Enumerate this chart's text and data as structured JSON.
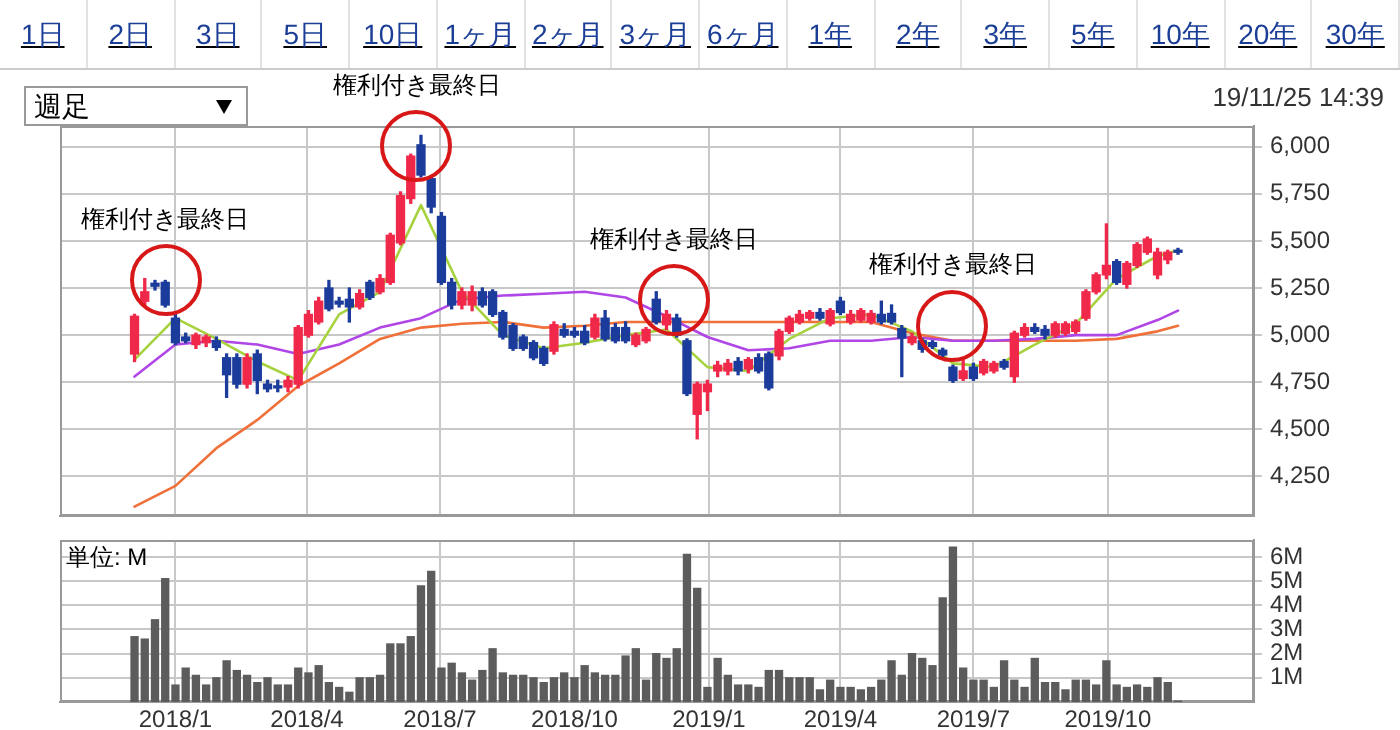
{
  "chart_data": [
    {
      "type": "other",
      "categories": [
        "1日",
        "2日",
        "3日",
        "5日",
        "10日",
        "1ヶ月",
        "2ヶ月",
        "3ヶ月",
        "6ヶ月",
        "1年",
        "2年",
        "3年",
        "5年",
        "10年",
        "20年",
        "30年"
      ],
      "annotations": [
        "週足",
        "19/11/25 14:39"
      ]
    },
    {
      "type": "candlestick",
      "x": [
        "2017-12-04",
        "2017-12-11",
        "2017-12-18",
        "2017-12-25",
        "2018-01-01",
        "2018-01-08",
        "2018-01-15",
        "2018-01-22",
        "2018-01-29",
        "2018-02-05",
        "2018-02-12",
        "2018-02-19",
        "2018-02-26",
        "2018-03-05",
        "2018-03-12",
        "2018-03-19",
        "2018-03-26",
        "2018-04-02",
        "2018-04-09",
        "2018-04-16",
        "2018-04-23",
        "2018-04-30",
        "2018-05-07",
        "2018-05-14",
        "2018-05-21",
        "2018-05-28",
        "2018-06-04",
        "2018-06-11",
        "2018-06-18",
        "2018-06-25",
        "2018-07-02",
        "2018-07-09",
        "2018-07-16",
        "2018-07-23",
        "2018-07-30",
        "2018-08-06",
        "2018-08-13",
        "2018-08-20",
        "2018-08-27",
        "2018-09-03",
        "2018-09-10",
        "2018-09-17",
        "2018-09-24",
        "2018-10-01",
        "2018-10-08",
        "2018-10-15",
        "2018-10-22",
        "2018-10-29",
        "2018-11-05",
        "2018-11-12",
        "2018-11-19",
        "2018-11-26",
        "2018-12-03",
        "2018-12-10",
        "2018-12-17",
        "2018-12-24",
        "2018-12-31",
        "2019-01-07",
        "2019-01-14",
        "2019-01-21",
        "2019-01-28",
        "2019-02-04",
        "2019-02-11",
        "2019-02-18",
        "2019-02-25",
        "2019-03-04",
        "2019-03-11",
        "2019-03-18",
        "2019-03-25",
        "2019-04-01",
        "2019-04-08",
        "2019-04-15",
        "2019-04-22",
        "2019-04-29",
        "2019-05-06",
        "2019-05-13",
        "2019-05-20",
        "2019-05-27",
        "2019-06-03",
        "2019-06-10",
        "2019-06-17",
        "2019-06-24",
        "2019-07-01",
        "2019-07-08",
        "2019-07-15",
        "2019-07-22",
        "2019-07-29",
        "2019-08-05",
        "2019-08-12",
        "2019-08-19",
        "2019-08-26",
        "2019-09-02",
        "2019-09-09",
        "2019-09-16",
        "2019-09-23",
        "2019-09-30",
        "2019-10-07",
        "2019-10-14",
        "2019-10-21",
        "2019-10-28",
        "2019-11-04",
        "2019-11-11",
        "2019-11-18"
      ],
      "ohlc": [
        [
          4900,
          5110,
          4860,
          5100
        ],
        [
          5180,
          5300,
          5160,
          5230
        ],
        [
          5275,
          5290,
          5240,
          5260
        ],
        [
          5280,
          5290,
          5150,
          5160
        ],
        [
          5090,
          5110,
          4950,
          4960
        ],
        [
          4990,
          5010,
          4960,
          4970
        ],
        [
          4950,
          5010,
          4930,
          5000
        ],
        [
          4960,
          5000,
          4940,
          4990
        ],
        [
          4970,
          4990,
          4920,
          4935
        ],
        [
          4880,
          4900,
          4670,
          4790
        ],
        [
          4880,
          4900,
          4720,
          4740
        ],
        [
          4740,
          4900,
          4720,
          4880
        ],
        [
          4900,
          4920,
          4690,
          4760
        ],
        [
          4740,
          4760,
          4700,
          4715
        ],
        [
          4730,
          4760,
          4700,
          4720
        ],
        [
          4725,
          4780,
          4700,
          4760
        ],
        [
          4740,
          5050,
          4720,
          5040
        ],
        [
          5000,
          5130,
          4990,
          5110
        ],
        [
          5070,
          5200,
          5060,
          5180
        ],
        [
          5250,
          5290,
          5130,
          5140
        ],
        [
          5180,
          5200,
          5150,
          5165
        ],
        [
          5190,
          5250,
          5070,
          5150
        ],
        [
          5150,
          5240,
          5140,
          5220
        ],
        [
          5280,
          5290,
          5190,
          5200
        ],
        [
          5230,
          5320,
          5220,
          5300
        ],
        [
          5280,
          5540,
          5270,
          5530
        ],
        [
          5490,
          5760,
          5480,
          5740
        ],
        [
          5725,
          5960,
          5700,
          5950
        ],
        [
          6010,
          6060,
          5840,
          5850
        ],
        [
          5830,
          5840,
          5650,
          5680
        ],
        [
          5630,
          5650,
          5270,
          5280
        ],
        [
          5280,
          5300,
          5140,
          5160
        ],
        [
          5160,
          5250,
          5140,
          5230
        ],
        [
          5160,
          5260,
          5130,
          5230
        ],
        [
          5230,
          5250,
          5150,
          5160
        ],
        [
          5230,
          5240,
          5100,
          5110
        ],
        [
          5120,
          5130,
          4980,
          4990
        ],
        [
          5050,
          5060,
          4920,
          4930
        ],
        [
          4990,
          5000,
          4920,
          4930
        ],
        [
          4960,
          4970,
          4870,
          4880
        ],
        [
          4930,
          4940,
          4840,
          4850
        ],
        [
          4915,
          5070,
          4900,
          5055
        ],
        [
          5030,
          5060,
          4990,
          5000
        ],
        [
          5020,
          5040,
          4990,
          5000
        ],
        [
          5020,
          5050,
          4950,
          4960
        ],
        [
          4990,
          5110,
          4980,
          5090
        ],
        [
          5090,
          5130,
          4970,
          4980
        ],
        [
          5040,
          5060,
          4960,
          4970
        ],
        [
          5040,
          5070,
          4960,
          4970
        ],
        [
          4950,
          5010,
          4940,
          5000
        ],
        [
          4970,
          5040,
          4960,
          5030
        ],
        [
          5190,
          5230,
          5060,
          5070
        ],
        [
          5055,
          5130,
          5030,
          5110
        ],
        [
          5090,
          5110,
          4990,
          5000
        ],
        [
          4970,
          4980,
          4680,
          4690
        ],
        [
          4580,
          4750,
          4450,
          4740
        ],
        [
          4700,
          4760,
          4600,
          4740
        ],
        [
          4810,
          4860,
          4780,
          4840
        ],
        [
          4810,
          4870,
          4790,
          4850
        ],
        [
          4860,
          4880,
          4790,
          4810
        ],
        [
          4820,
          4880,
          4800,
          4870
        ],
        [
          4880,
          4900,
          4800,
          4810
        ],
        [
          4900,
          4910,
          4710,
          4720
        ],
        [
          4890,
          5030,
          4870,
          5020
        ],
        [
          5020,
          5100,
          5010,
          5090
        ],
        [
          5070,
          5130,
          5060,
          5110
        ],
        [
          5090,
          5130,
          5080,
          5120
        ],
        [
          5120,
          5140,
          5080,
          5090
        ],
        [
          5060,
          5140,
          5050,
          5130
        ],
        [
          5180,
          5200,
          5110,
          5120
        ],
        [
          5070,
          5130,
          5060,
          5110
        ],
        [
          5080,
          5140,
          5070,
          5130
        ],
        [
          5070,
          5130,
          5060,
          5115
        ],
        [
          5110,
          5180,
          5060,
          5070
        ],
        [
          5115,
          5160,
          5060,
          5070
        ],
        [
          5035,
          5050,
          4780,
          4985
        ],
        [
          4960,
          5010,
          4950,
          4990
        ],
        [
          4970,
          4980,
          4910,
          4925
        ],
        [
          4960,
          4970,
          4930,
          4940
        ],
        [
          4920,
          4930,
          4880,
          4895
        ],
        [
          4830,
          4840,
          4750,
          4760
        ],
        [
          4770,
          4880,
          4760,
          4810
        ],
        [
          4830,
          4850,
          4760,
          4770
        ],
        [
          4800,
          4870,
          4790,
          4860
        ],
        [
          4810,
          4860,
          4800,
          4850
        ],
        [
          4860,
          4870,
          4820,
          4830
        ],
        [
          4780,
          5020,
          4750,
          5010
        ],
        [
          5000,
          5060,
          4990,
          5040
        ],
        [
          5040,
          5060,
          5010,
          5020
        ],
        [
          5030,
          5050,
          4980,
          5000
        ],
        [
          5000,
          5070,
          4990,
          5060
        ],
        [
          5010,
          5070,
          5000,
          5060
        ],
        [
          5020,
          5080,
          5010,
          5070
        ],
        [
          5090,
          5240,
          5080,
          5230
        ],
        [
          5230,
          5330,
          5220,
          5320
        ],
        [
          5320,
          5590,
          5300,
          5370
        ],
        [
          5390,
          5400,
          5270,
          5280
        ],
        [
          5270,
          5390,
          5250,
          5380
        ],
        [
          5370,
          5490,
          5360,
          5480
        ],
        [
          5440,
          5520,
          5430,
          5510
        ],
        [
          5320,
          5460,
          5300,
          5440
        ],
        [
          5400,
          5450,
          5380,
          5440
        ],
        [
          5450,
          5460,
          5430,
          5440
        ]
      ],
      "colors": [
        "#f0284a",
        "#f0284a",
        "#1c3c9c",
        "#1c3c9c",
        "#1c3c9c",
        "#1c3c9c",
        "#f0284a",
        "#f0284a",
        "#1c3c9c",
        "#1c3c9c",
        "#1c3c9c",
        "#f0284a",
        "#1c3c9c",
        "#1c3c9c",
        "#1c3c9c",
        "#f0284a",
        "#f0284a",
        "#f0284a",
        "#f0284a",
        "#1c3c9c",
        "#1c3c9c",
        "#1c3c9c",
        "#f0284a",
        "#1c3c9c",
        "#f0284a",
        "#f0284a",
        "#f0284a",
        "#f0284a",
        "#1c3c9c",
        "#1c3c9c",
        "#1c3c9c",
        "#1c3c9c",
        "#f0284a",
        "#f0284a",
        "#1c3c9c",
        "#1c3c9c",
        "#1c3c9c",
        "#1c3c9c",
        "#1c3c9c",
        "#1c3c9c",
        "#1c3c9c",
        "#f0284a",
        "#1c3c9c",
        "#1c3c9c",
        "#1c3c9c",
        "#f0284a",
        "#1c3c9c",
        "#1c3c9c",
        "#1c3c9c",
        "#f0284a",
        "#f0284a",
        "#1c3c9c",
        "#f0284a",
        "#1c3c9c",
        "#1c3c9c",
        "#f0284a",
        "#f0284a",
        "#f0284a",
        "#f0284a",
        "#1c3c9c",
        "#f0284a",
        "#1c3c9c",
        "#1c3c9c",
        "#f0284a",
        "#f0284a",
        "#f0284a",
        "#f0284a",
        "#1c3c9c",
        "#f0284a",
        "#1c3c9c",
        "#f0284a",
        "#f0284a",
        "#f0284a",
        "#1c3c9c",
        "#1c3c9c",
        "#1c3c9c",
        "#f0284a",
        "#1c3c9c",
        "#1c3c9c",
        "#1c3c9c",
        "#1c3c9c",
        "#f0284a",
        "#1c3c9c",
        "#f0284a",
        "#f0284a",
        "#1c3c9c",
        "#f0284a",
        "#f0284a",
        "#1c3c9c",
        "#1c3c9c",
        "#f0284a",
        "#f0284a",
        "#f0284a",
        "#f0284a",
        "#f0284a",
        "#f0284a",
        "#1c3c9c",
        "#f0284a",
        "#f0284a",
        "#f0284a",
        "#f0284a",
        "#f0284a",
        "#1c3c9c"
      ],
      "series": [
        {
          "type": "line",
          "color": "#a6d23e",
          "x": [
            "2017-12-04",
            "2018-01-01",
            "2018-01-29",
            "2018-02-26",
            "2018-03-26",
            "2018-04-23",
            "2018-05-21",
            "2018-06-18",
            "2018-07-16",
            "2018-08-13",
            "2018-09-10",
            "2018-10-08",
            "2018-11-05",
            "2018-12-03",
            "2018-12-31",
            "2019-01-28",
            "2019-02-25",
            "2019-03-25",
            "2019-04-22",
            "2019-05-20",
            "2019-06-17",
            "2019-07-15",
            "2019-08-12",
            "2019-09-09",
            "2019-10-07",
            "2019-11-04",
            "2019-11-18"
          ],
          "values": [
            4870,
            5090,
            4980,
            4860,
            4760,
            5110,
            5230,
            5690,
            5230,
            5000,
            4930,
            4960,
            5000,
            5030,
            4830,
            4810,
            4980,
            5090,
            5110,
            5020,
            4850,
            4830,
            4950,
            5060,
            5300,
            5420,
            5450
          ]
        },
        {
          "type": "line",
          "color": "#b046e6",
          "x": [
            "2017-12-04",
            "2018-01-01",
            "2018-01-29",
            "2018-02-26",
            "2018-03-26",
            "2018-04-23",
            "2018-05-21",
            "2018-06-18",
            "2018-07-16",
            "2018-08-13",
            "2018-09-10",
            "2018-10-08",
            "2018-11-05",
            "2018-12-03",
            "2018-12-31",
            "2019-01-28",
            "2019-02-25",
            "2019-03-25",
            "2019-04-22",
            "2019-05-20",
            "2019-06-17",
            "2019-07-15",
            "2019-08-12",
            "2019-09-09",
            "2019-10-07",
            "2019-11-04",
            "2019-11-18"
          ],
          "values": [
            4780,
            4950,
            4970,
            4950,
            4900,
            4950,
            5040,
            5090,
            5190,
            5210,
            5220,
            5230,
            5200,
            5100,
            4990,
            4920,
            4930,
            4970,
            4970,
            4990,
            4970,
            4970,
            4980,
            5000,
            5000,
            5080,
            5130
          ]
        },
        {
          "type": "line",
          "color": "#f0703a",
          "x": [
            "2017-12-04",
            "2018-01-01",
            "2018-01-29",
            "2018-02-26",
            "2018-03-26",
            "2018-04-23",
            "2018-05-21",
            "2018-06-18",
            "2018-07-16",
            "2018-08-13",
            "2018-09-10",
            "2018-10-08",
            "2018-11-05",
            "2018-12-03",
            "2018-12-31",
            "2019-01-28",
            "2019-02-25",
            "2019-03-25",
            "2019-04-22",
            "2019-05-20",
            "2019-06-17",
            "2019-07-15",
            "2019-08-12",
            "2019-09-09",
            "2019-10-07",
            "2019-11-04",
            "2019-11-18"
          ],
          "values": [
            4090,
            4200,
            4400,
            4550,
            4730,
            4850,
            4980,
            5040,
            5060,
            5070,
            5040,
            5050,
            5070,
            5070,
            5070,
            5070,
            5070,
            5070,
            5070,
            5010,
            4970,
            4970,
            4970,
            4970,
            4980,
            5020,
            5050
          ]
        }
      ],
      "xlim": [
        "2017-10-14",
        "2020-01-09"
      ],
      "xticks": [
        {
          "value": "2018-01-01",
          "label": null
        },
        {
          "value": "2018-04-01",
          "label": null
        },
        {
          "value": "2018-07-01",
          "label": null
        },
        {
          "value": "2018-10-01",
          "label": null
        },
        {
          "value": "2019-01-01",
          "label": null
        },
        {
          "value": "2019-04-01",
          "label": null
        },
        {
          "value": "2019-07-01",
          "label": null
        },
        {
          "value": "2019-10-01",
          "label": null
        }
      ],
      "ylim": [
        4040,
        6110
      ],
      "yticks": [
        {
          "value": 4250,
          "label": "4,250"
        },
        {
          "value": 4500,
          "label": "4,500"
        },
        {
          "value": 4750,
          "label": "4,750"
        },
        {
          "value": 5000,
          "label": "5,000"
        },
        {
          "value": 5250,
          "label": "5,250"
        },
        {
          "value": 5500,
          "label": "5,500"
        },
        {
          "value": 5750,
          "label": "5,750"
        },
        {
          "value": 6000,
          "label": "6,000"
        }
      ],
      "grid": true,
      "tick_labels": "y",
      "annotations": [
        {
          "text": "権利付き最終日",
          "x": "2017-12-25",
          "y": 5290
        },
        {
          "text": "権利付き最終日",
          "x": "2018-06-15",
          "y": 6000
        },
        {
          "text": "権利付き最終日",
          "x": "2018-12-08",
          "y": 5185
        },
        {
          "text": "権利付き最終日",
          "x": "2019-06-17",
          "y": 5050
        }
      ]
    },
    {
      "type": "bar",
      "color": "#5c5c5c",
      "x": [
        "2017-12-04",
        "2017-12-11",
        "2017-12-18",
        "2017-12-25",
        "2018-01-01",
        "2018-01-08",
        "2018-01-15",
        "2018-01-22",
        "2018-01-29",
        "2018-02-05",
        "2018-02-12",
        "2018-02-19",
        "2018-02-26",
        "2018-03-05",
        "2018-03-12",
        "2018-03-19",
        "2018-03-26",
        "2018-04-02",
        "2018-04-09",
        "2018-04-16",
        "2018-04-23",
        "2018-04-30",
        "2018-05-07",
        "2018-05-14",
        "2018-05-21",
        "2018-05-28",
        "2018-06-04",
        "2018-06-11",
        "2018-06-18",
        "2018-06-25",
        "2018-07-02",
        "2018-07-09",
        "2018-07-16",
        "2018-07-23",
        "2018-07-30",
        "2018-08-06",
        "2018-08-13",
        "2018-08-20",
        "2018-08-27",
        "2018-09-03",
        "2018-09-10",
        "2018-09-17",
        "2018-09-24",
        "2018-10-01",
        "2018-10-08",
        "2018-10-15",
        "2018-10-22",
        "2018-10-29",
        "2018-11-05",
        "2018-11-12",
        "2018-11-19",
        "2018-11-26",
        "2018-12-03",
        "2018-12-10",
        "2018-12-17",
        "2018-12-24",
        "2018-12-31",
        "2019-01-07",
        "2019-01-14",
        "2019-01-21",
        "2019-01-28",
        "2019-02-04",
        "2019-02-11",
        "2019-02-18",
        "2019-02-25",
        "2019-03-04",
        "2019-03-11",
        "2019-03-18",
        "2019-03-25",
        "2019-04-01",
        "2019-04-08",
        "2019-04-15",
        "2019-04-22",
        "2019-04-29",
        "2019-05-06",
        "2019-05-13",
        "2019-05-20",
        "2019-05-27",
        "2019-06-03",
        "2019-06-10",
        "2019-06-17",
        "2019-06-24",
        "2019-07-01",
        "2019-07-08",
        "2019-07-15",
        "2019-07-22",
        "2019-07-29",
        "2019-08-05",
        "2019-08-12",
        "2019-08-19",
        "2019-08-26",
        "2019-09-02",
        "2019-09-09",
        "2019-09-16",
        "2019-09-23",
        "2019-09-30",
        "2019-10-07",
        "2019-10-14",
        "2019-10-21",
        "2019-10-28",
        "2019-11-04",
        "2019-11-11",
        "2019-11-18"
      ],
      "values": [
        2.7,
        2.6,
        3.4,
        5.1,
        0.7,
        1.4,
        1.1,
        0.7,
        1.0,
        1.7,
        1.3,
        1.1,
        0.8,
        1.0,
        0.7,
        0.7,
        1.4,
        1.2,
        1.5,
        0.8,
        0.6,
        0.4,
        1.0,
        1.0,
        1.1,
        2.4,
        2.4,
        2.7,
        4.8,
        5.4,
        1.4,
        1.6,
        1.2,
        0.9,
        1.3,
        2.2,
        1.2,
        1.1,
        1.1,
        1.0,
        0.8,
        1.0,
        1.2,
        1.0,
        1.5,
        1.2,
        1.1,
        1.1,
        1.9,
        2.2,
        0.9,
        2.0,
        1.8,
        2.2,
        6.1,
        4.7,
        0.6,
        1.8,
        1.1,
        0.7,
        0.7,
        0.6,
        1.3,
        1.3,
        1.0,
        1.0,
        1.0,
        0.5,
        0.9,
        0.6,
        0.6,
        0.5,
        0.6,
        0.9,
        1.7,
        1.1,
        2.0,
        1.8,
        1.5,
        4.3,
        6.4,
        1.4,
        0.9,
        0.9,
        0.6,
        1.7,
        0.9,
        0.6,
        1.8,
        0.8,
        0.8,
        0.5,
        0.9,
        0.9,
        0.7,
        1.7,
        0.7,
        0.6,
        0.7,
        0.6,
        1.0,
        0.8,
        0.03
      ],
      "xlim": [
        "2017-10-14",
        "2020-01-09"
      ],
      "xticks": [
        {
          "value": "2018-01-01",
          "label": "2018/1"
        },
        {
          "value": "2018-04-01",
          "label": "2018/4"
        },
        {
          "value": "2018-07-01",
          "label": "2018/7"
        },
        {
          "value": "2018-10-01",
          "label": "2018/10"
        },
        {
          "value": "2019-01-01",
          "label": "2019/1"
        },
        {
          "value": "2019-04-01",
          "label": "2019/4"
        },
        {
          "value": "2019-07-01",
          "label": "2019/7"
        },
        {
          "value": "2019-10-01",
          "label": "2019/10"
        }
      ],
      "ylim": [
        0,
        6.7
      ],
      "yticks": [
        {
          "value": 1,
          "label": "1M"
        },
        {
          "value": 2,
          "label": "2M"
        },
        {
          "value": 3,
          "label": "3M"
        },
        {
          "value": 4,
          "label": "4M"
        },
        {
          "value": 5,
          "label": "5M"
        },
        {
          "value": 6,
          "label": "6M"
        }
      ],
      "grid": true,
      "annotations": [
        "単位: M"
      ]
    }
  ]
}
